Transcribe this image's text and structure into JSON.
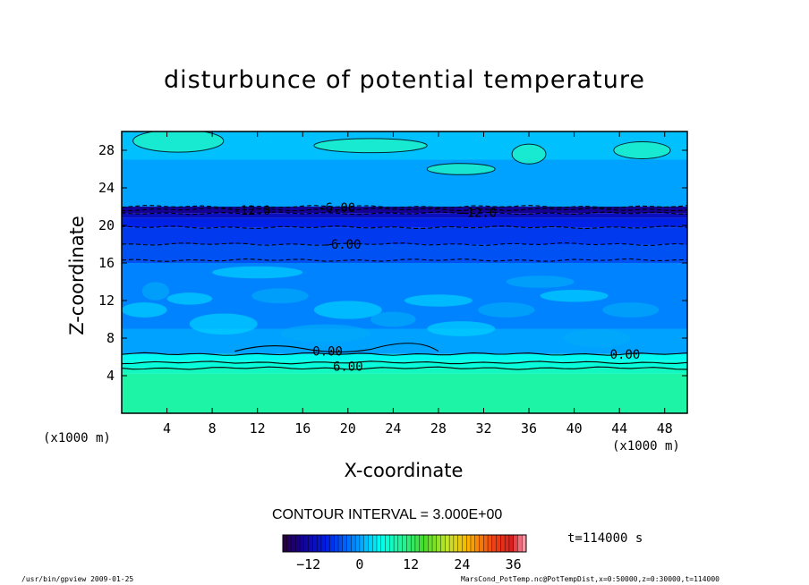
{
  "chart_data": {
    "type": "heatmap",
    "title": "disturbunce of potential temperature",
    "xlabel": "X-coordinate",
    "ylabel": "Z-coordinate",
    "x_unit": "(x1000 m)",
    "y_unit": "(x1000 m)",
    "xlim": [
      0,
      50
    ],
    "ylim": [
      0,
      30
    ],
    "x_ticks": [
      4,
      8,
      12,
      16,
      20,
      24,
      28,
      32,
      36,
      40,
      44,
      48
    ],
    "y_ticks": [
      4,
      8,
      12,
      16,
      20,
      24,
      28
    ],
    "z_bands": [
      {
        "z_bottom": 0,
        "z_top": 4.2,
        "value": 9.0
      },
      {
        "z_bottom": 4.2,
        "z_top": 4.8,
        "value": 7.5
      },
      {
        "z_bottom": 4.8,
        "z_top": 5.6,
        "value": 6.0
      },
      {
        "z_bottom": 5.6,
        "z_top": 6.3,
        "value": 4.5
      },
      {
        "z_bottom": 6.3,
        "z_top": 9.0,
        "value": 0.0
      },
      {
        "z_bottom": 9.0,
        "z_top": 16.0,
        "value": -1.5
      },
      {
        "z_bottom": 16.0,
        "z_top": 18.0,
        "value": -4.5
      },
      {
        "z_bottom": 18.0,
        "z_top": 19.8,
        "value": -6.0
      },
      {
        "z_bottom": 19.8,
        "z_top": 20.8,
        "value": -7.5
      },
      {
        "z_bottom": 20.8,
        "z_top": 21.3,
        "value": -10.5
      },
      {
        "z_bottom": 21.3,
        "z_top": 22.0,
        "value": -13.5
      },
      {
        "z_bottom": 22.0,
        "z_top": 27.0,
        "value": 0.0
      },
      {
        "z_bottom": 27.0,
        "z_top": 30.0,
        "value": 1.5
      }
    ],
    "contour_lines": [
      {
        "z": 4.8,
        "style": "solid"
      },
      {
        "z": 5.4,
        "style": "solid"
      },
      {
        "z": 6.3,
        "style": "solid"
      },
      {
        "z": 16.3,
        "style": "dashed"
      },
      {
        "z": 18.0,
        "style": "dashed"
      },
      {
        "z": 19.8,
        "style": "dashed"
      },
      {
        "z": 21.3,
        "style": "dashed"
      },
      {
        "z": 21.7,
        "style": "dashed"
      },
      {
        "z": 22.0,
        "style": "dashed"
      }
    ],
    "contour_labels": [
      {
        "x": 18.2,
        "z": 6.6,
        "text": "0.00"
      },
      {
        "x": 44.5,
        "z": 6.3,
        "text": "0.00"
      },
      {
        "x": 20.0,
        "z": 5.0,
        "text": "6.00"
      },
      {
        "x": 19.5,
        "z": 18.0,
        "text": "-6.00"
      },
      {
        "x": 19.0,
        "z": 21.9,
        "text": "-6.00"
      },
      {
        "x": 11.5,
        "z": 21.6,
        "text": "-12.0"
      },
      {
        "x": 31.5,
        "z": 21.4,
        "text": "-12.0"
      }
    ],
    "colorbar": {
      "min": -18,
      "max": 39,
      "tick_values": [
        -12,
        0,
        12,
        24,
        36
      ],
      "tick_labels": [
        "−12",
        "0",
        "12",
        "24",
        "36"
      ]
    }
  },
  "texts": {
    "contour_interval": "CONTOUR INTERVAL = 3.000E+00",
    "time": "t=114000 s",
    "footer_left": "/usr/bin/gpview   2009-01-25",
    "footer_right": "MarsCond_PotTemp.nc@PotTempDist,x=0:50000,z=0:30000,t=114000",
    "x_unit_left": "(x1000 m)",
    "x_unit_right": "(x1000 m)"
  }
}
